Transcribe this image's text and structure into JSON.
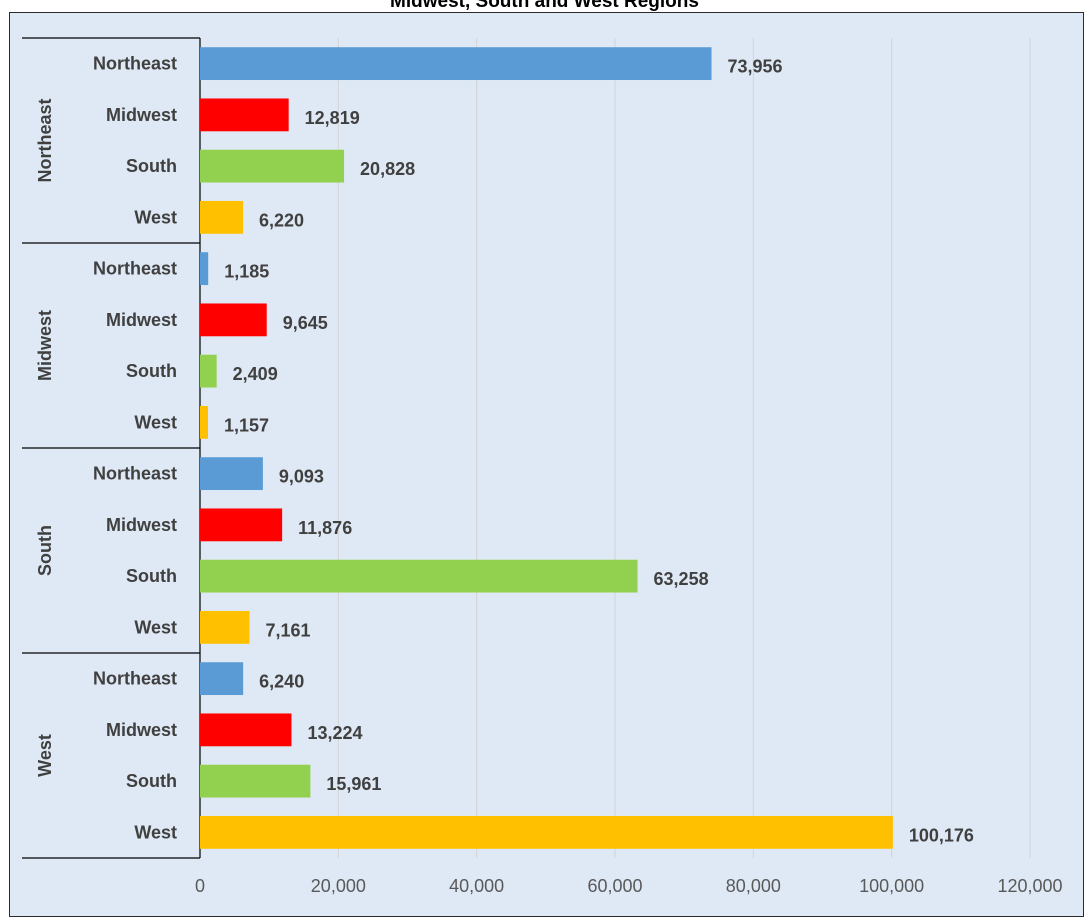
{
  "chart_data": {
    "type": "bar",
    "orientation": "horizontal",
    "title": "Midwest, South and West Regions",
    "groups": [
      "Northeast",
      "Midwest",
      "South",
      "West"
    ],
    "categories": [
      "Northeast",
      "Midwest",
      "South",
      "West"
    ],
    "values": [
      [
        73956,
        12819,
        20828,
        6220
      ],
      [
        1185,
        9645,
        2409,
        1157
      ],
      [
        9093,
        11876,
        63258,
        7161
      ],
      [
        6240,
        13224,
        15961,
        100176
      ]
    ],
    "value_labels": [
      [
        "73,956",
        "12,819",
        "20,828",
        "6,220"
      ],
      [
        "1,185",
        "9,645",
        "2,409",
        "1,157"
      ],
      [
        "9,093",
        "11,876",
        "63,258",
        "7,161"
      ],
      [
        "6,240",
        "13,224",
        "15,961",
        "100,176"
      ]
    ],
    "colors": {
      "Northeast": "#5b9bd5",
      "Midwest": "#ff0000",
      "South": "#92d050",
      "West": "#ffc000"
    },
    "xlim": [
      0,
      120000
    ],
    "xticks": [
      0,
      20000,
      40000,
      60000,
      80000,
      100000,
      120000
    ],
    "xtick_labels": [
      "0",
      "20,000",
      "40,000",
      "60,000",
      "80,000",
      "100,000",
      "120,000"
    ],
    "grid": true,
    "legend": "none"
  }
}
